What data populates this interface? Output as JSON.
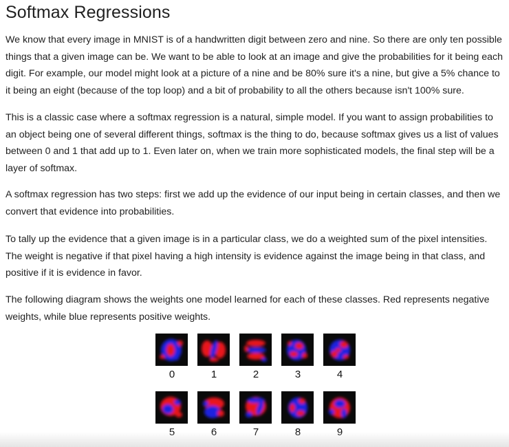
{
  "title": "Softmax Regressions",
  "paragraphs": [
    "We know that every image in MNIST is of a handwritten digit between zero and nine. So there are only ten possible things that a given image can be. We want to be able to look at an image and give the probabilities for it being each digit. For example, our model might look at a picture of a nine and be 80% sure it's a nine, but give a 5% chance to it being an eight (because of the top loop) and a bit of probability to all the others because isn't 100% sure.",
    "This is a classic case where a softmax regression is a natural, simple model. If you want to assign probabilities to an object being one of several different things, softmax is the thing to do, because softmax gives us a list of values between 0 and 1 that add up to 1. Even later on, when we train more sophisticated models, the final step will be a layer of softmax.",
    "A softmax regression has two steps: first we add up the evidence of our input being in certain classes, and then we convert that evidence into probabilities.",
    "To tally up the evidence that a given image is in a particular class, we do a weighted sum of the pixel intensities. The weight is negative if that pixel having a high intensity is evidence against the image being in that class, and positive if it is evidence in favor.",
    "The following diagram shows the weights one model learned for each of these classes. Red represents negative weights, while blue represents positive weights."
  ],
  "weights_figure": {
    "labels": [
      "0",
      "1",
      "2",
      "3",
      "4",
      "5",
      "6",
      "7",
      "8",
      "9"
    ],
    "negative_color": "#e8141c",
    "positive_color": "#1b22e0",
    "background_color": "#0a0a0a"
  }
}
